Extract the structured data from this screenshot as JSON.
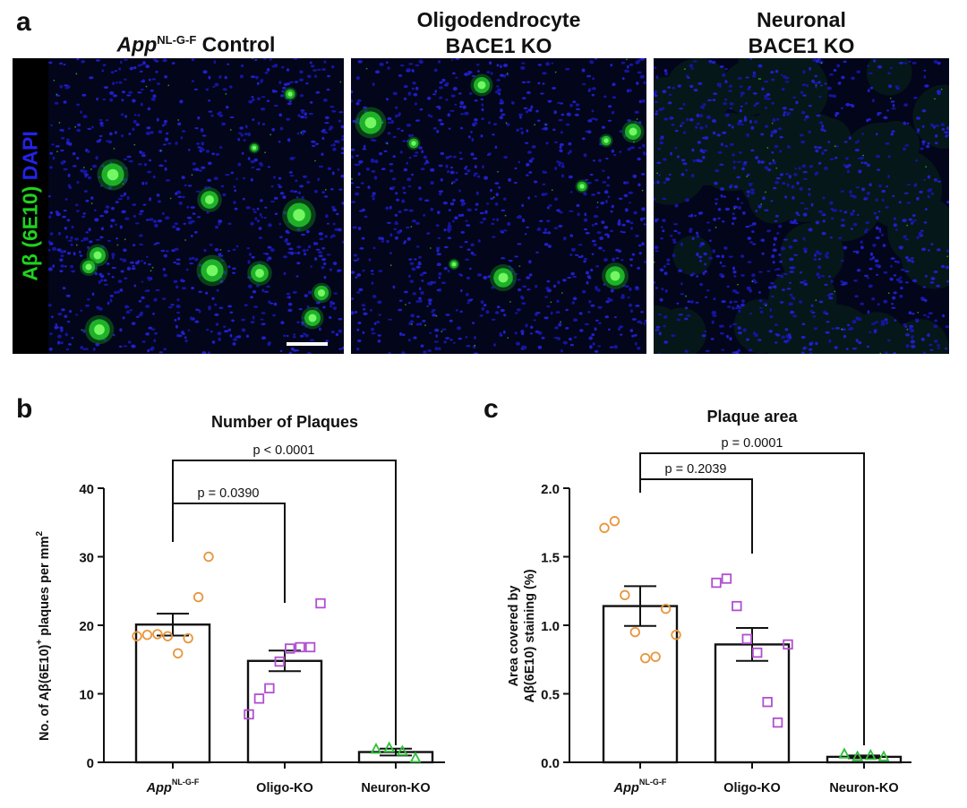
{
  "panel_a": {
    "letter": "a",
    "side_label": {
      "part1": "Aβ (6E10)",
      "part2": "DAPI",
      "color1": "#1fd21f",
      "color2": "#2323e8"
    },
    "images": [
      {
        "title_italic": "App",
        "title_sup": "NL-G-F",
        "title_rest": " Control",
        "line2": ""
      },
      {
        "title_italic": "",
        "title_sup": "",
        "title_rest": "Oligodendrocyte",
        "line2": "BACE1 KO"
      },
      {
        "title_italic": "",
        "title_sup": "",
        "title_rest": "Neuronal",
        "line2": "BACE1 KO"
      }
    ]
  },
  "chart_data": [
    {
      "panel": "b",
      "type": "bar",
      "title": "Number of Plaques",
      "ylabel": {
        "pre": "No. of Aβ(6E10)",
        "sup": "+",
        "post": " plaques per mm",
        "sup2": "2"
      },
      "ylim": [
        0,
        40
      ],
      "yticks": [
        "0",
        "10",
        "20",
        "30",
        "40"
      ],
      "categories": [
        {
          "italic": "App",
          "sup": "NL-G-F",
          "text": ""
        },
        {
          "italic": "",
          "sup": "",
          "text": "Oligo-KO"
        },
        {
          "italic": "",
          "sup": "",
          "text": "Neuron-KO"
        }
      ],
      "values": [
        20.1,
        14.8,
        1.5
      ],
      "sem": [
        1.6,
        1.5,
        0.5
      ],
      "points": [
        [
          18.4,
          18.6,
          18.7,
          18.4,
          15.9,
          18.1,
          24.1,
          30.0
        ],
        [
          7.0,
          9.3,
          10.8,
          14.7,
          16.6,
          16.8,
          16.8,
          23.2
        ],
        [
          1.9,
          2.1,
          1.6,
          0.6
        ]
      ],
      "point_markers": [
        "circle",
        "square",
        "triangle"
      ],
      "point_colors": [
        "#e8963c",
        "#b04fd0",
        "#2fbf3a"
      ],
      "comparisons": [
        {
          "from": 0,
          "to": 1,
          "label": "p = 0.0390",
          "level": 0
        },
        {
          "from": 0,
          "to": 2,
          "label": "p < 0.0001",
          "level": 1
        }
      ]
    },
    {
      "panel": "c",
      "type": "bar",
      "title": "Plaque area",
      "ylabel": {
        "line1": "Area covered by",
        "line2": "Aβ(6E10) staining (%)"
      },
      "ylim": [
        0,
        2.0
      ],
      "yticks": [
        "0.0",
        "0.5",
        "1.0",
        "1.5",
        "2.0"
      ],
      "categories": [
        {
          "italic": "App",
          "sup": "NL-G-F",
          "text": ""
        },
        {
          "italic": "",
          "sup": "",
          "text": "Oligo-KO"
        },
        {
          "italic": "",
          "sup": "",
          "text": "Neuron-KO"
        }
      ],
      "values": [
        1.14,
        0.86,
        0.04
      ],
      "sem": [
        0.145,
        0.12,
        0.01
      ],
      "points": [
        [
          1.71,
          1.76,
          1.22,
          0.95,
          0.76,
          0.77,
          1.12,
          0.93
        ],
        [
          1.31,
          1.34,
          1.14,
          0.9,
          0.8,
          0.44,
          0.29,
          0.86
        ],
        [
          0.06,
          0.04,
          0.05,
          0.04
        ]
      ],
      "point_markers": [
        "circle",
        "square",
        "triangle"
      ],
      "point_colors": [
        "#e8963c",
        "#b04fd0",
        "#2fbf3a"
      ],
      "comparisons": [
        {
          "from": 0,
          "to": 1,
          "label": "p = 0.2039",
          "level": 0
        },
        {
          "from": 0,
          "to": 2,
          "label": "p = 0.0001",
          "level": 1
        }
      ]
    }
  ]
}
